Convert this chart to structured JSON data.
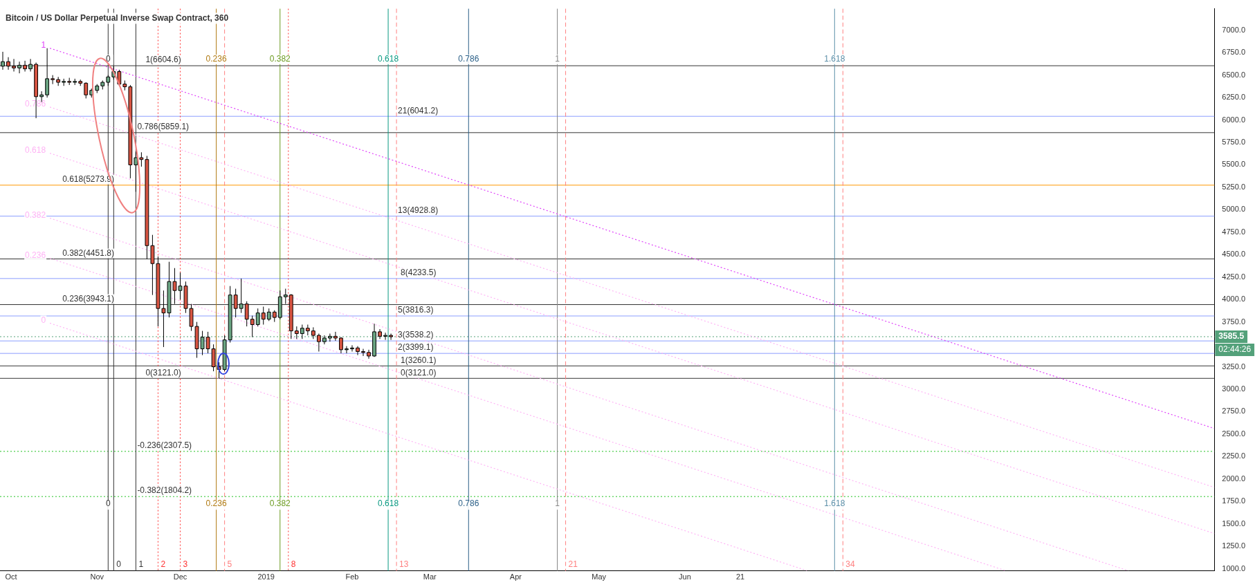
{
  "chart_data": {
    "type": "candlestick",
    "title": "Bitcoin / US Dollar Perpetual Inverse Swap Contract, 360",
    "x": [
      "2018-09-28",
      "2018-09-30",
      "2018-10-02",
      "2018-10-04",
      "2018-10-06",
      "2018-10-08",
      "2018-10-10",
      "2018-10-12",
      "2018-10-14",
      "2018-10-16",
      "2018-10-18",
      "2018-10-20",
      "2018-10-22",
      "2018-10-24",
      "2018-10-26",
      "2018-10-28",
      "2018-10-30",
      "2018-11-01",
      "2018-11-03",
      "2018-11-05",
      "2018-11-07",
      "2018-11-09",
      "2018-11-11",
      "2018-11-13",
      "2018-11-15",
      "2018-11-17",
      "2018-11-19",
      "2018-11-21",
      "2018-11-23",
      "2018-11-25",
      "2018-11-27",
      "2018-11-29",
      "2018-12-01",
      "2018-12-03",
      "2018-12-05",
      "2018-12-07",
      "2018-12-09",
      "2018-12-11",
      "2018-12-13",
      "2018-12-15",
      "2018-12-17",
      "2018-12-19",
      "2018-12-21",
      "2018-12-23",
      "2018-12-25",
      "2018-12-27",
      "2018-12-29",
      "2018-12-31",
      "2019-01-02",
      "2019-01-04",
      "2019-01-06",
      "2019-01-08",
      "2019-01-10",
      "2019-01-12",
      "2019-01-14",
      "2019-01-16",
      "2019-01-18",
      "2019-01-20",
      "2019-01-22",
      "2019-01-24",
      "2019-01-26",
      "2019-01-28",
      "2019-01-30",
      "2019-02-01",
      "2019-02-03",
      "2019-02-05",
      "2019-02-07",
      "2019-02-09",
      "2019-02-11",
      "2019-02-13",
      "2019-02-15"
    ],
    "ohlc": [
      [
        6600,
        6760,
        6560,
        6650
      ],
      [
        6650,
        6700,
        6560,
        6600
      ],
      [
        6600,
        6680,
        6540,
        6580
      ],
      [
        6580,
        6650,
        6520,
        6610
      ],
      [
        6610,
        6660,
        6540,
        6570
      ],
      [
        6570,
        6680,
        6540,
        6620
      ],
      [
        6620,
        6640,
        6020,
        6260
      ],
      [
        6260,
        6320,
        6200,
        6280
      ],
      [
        6280,
        6800,
        6250,
        6460
      ],
      [
        6460,
        6500,
        6400,
        6450
      ],
      [
        6450,
        6480,
        6380,
        6420
      ],
      [
        6420,
        6460,
        6380,
        6430
      ],
      [
        6430,
        6470,
        6390,
        6420
      ],
      [
        6420,
        6460,
        6390,
        6430
      ],
      [
        6430,
        6450,
        6380,
        6410
      ],
      [
        6410,
        6420,
        6240,
        6280
      ],
      [
        6280,
        6350,
        6250,
        6330
      ],
      [
        6330,
        6400,
        6300,
        6380
      ],
      [
        6380,
        6440,
        6340,
        6420
      ],
      [
        6420,
        6500,
        6380,
        6480
      ],
      [
        6480,
        6600,
        6450,
        6540
      ],
      [
        6540,
        6560,
        6380,
        6400
      ],
      [
        6400,
        6440,
        6330,
        6370
      ],
      [
        6370,
        6390,
        5350,
        5500
      ],
      [
        5500,
        5650,
        5200,
        5580
      ],
      [
        5580,
        5640,
        5480,
        5560
      ],
      [
        5560,
        5600,
        4450,
        4600
      ],
      [
        4600,
        4720,
        4050,
        4400
      ],
      [
        4400,
        4480,
        3700,
        3900
      ],
      [
        3900,
        4100,
        3470,
        3850
      ],
      [
        3850,
        4420,
        3800,
        4200
      ],
      [
        4200,
        4350,
        3950,
        4100
      ],
      [
        4100,
        4300,
        4000,
        4150
      ],
      [
        4150,
        4200,
        3850,
        3900
      ],
      [
        3900,
        3950,
        3650,
        3700
      ],
      [
        3700,
        3750,
        3350,
        3450
      ],
      [
        3450,
        3650,
        3380,
        3580
      ],
      [
        3580,
        3640,
        3400,
        3450
      ],
      [
        3450,
        3500,
        3200,
        3250
      ],
      [
        3250,
        3300,
        3121,
        3220
      ],
      [
        3220,
        3600,
        3200,
        3550
      ],
      [
        3550,
        4150,
        3520,
        4050
      ],
      [
        4050,
        4120,
        3800,
        3900
      ],
      [
        3900,
        4233,
        3850,
        3950
      ],
      [
        3950,
        3980,
        3700,
        3780
      ],
      [
        3780,
        3820,
        3580,
        3720
      ],
      [
        3720,
        3900,
        3700,
        3850
      ],
      [
        3850,
        3920,
        3720,
        3780
      ],
      [
        3780,
        3900,
        3760,
        3860
      ],
      [
        3860,
        3880,
        3750,
        3800
      ],
      [
        3800,
        4100,
        3780,
        4030
      ],
      [
        4030,
        4120,
        3950,
        4050
      ],
      [
        4050,
        4060,
        3560,
        3650
      ],
      [
        3650,
        3700,
        3560,
        3620
      ],
      [
        3620,
        3720,
        3560,
        3680
      ],
      [
        3680,
        3720,
        3600,
        3650
      ],
      [
        3650,
        3690,
        3560,
        3600
      ],
      [
        3600,
        3620,
        3420,
        3530
      ],
      [
        3530,
        3600,
        3500,
        3570
      ],
      [
        3570,
        3620,
        3530,
        3590
      ],
      [
        3590,
        3640,
        3540,
        3570
      ],
      [
        3570,
        3580,
        3400,
        3440
      ],
      [
        3440,
        3480,
        3400,
        3450
      ],
      [
        3450,
        3490,
        3420,
        3460
      ],
      [
        3460,
        3480,
        3380,
        3420
      ],
      [
        3420,
        3450,
        3370,
        3410
      ],
      [
        3410,
        3440,
        3340,
        3370
      ],
      [
        3370,
        3730,
        3360,
        3640
      ],
      [
        3640,
        3670,
        3560,
        3590
      ],
      [
        3590,
        3630,
        3550,
        3600
      ],
      [
        3600,
        3620,
        3550,
        3585
      ]
    ],
    "series": [
      {
        "type": "line",
        "name": "1",
        "color": "#e040fb",
        "x": [
          "2018-10-15",
          "2019-12-09"
        ],
        "values": [
          6800,
          2562
        ]
      },
      {
        "type": "line",
        "name": "0.786",
        "color": "#ffb3f5",
        "x": [
          "2018-10-15",
          "2019-12-09"
        ],
        "values": [
          6144,
          1906
        ]
      },
      {
        "type": "line",
        "name": "0.618",
        "color": "#ffb3f5",
        "x": [
          "2018-10-15",
          "2019-12-09"
        ],
        "values": [
          5630,
          1392
        ]
      },
      {
        "type": "line",
        "name": "0.382",
        "color": "#ffb3f5",
        "x": [
          "2018-10-15",
          "2019-11-08"
        ],
        "values": [
          4906,
          977
        ]
      },
      {
        "type": "line",
        "name": "0.236",
        "color": "#ffb3f5",
        "x": [
          "2018-10-15",
          "2019-09-25"
        ],
        "values": [
          4459,
          975
        ]
      },
      {
        "type": "line",
        "name": "0",
        "color": "#ffb3f5",
        "x": [
          "2018-10-15",
          "2019-07-15"
        ],
        "values": [
          3736,
          979
        ]
      }
    ],
    "line_style": "dotted",
    "marker": "none",
    "xlim": [
      "2018-09-27",
      "2019-12-09"
    ],
    "xticks": [
      {
        "value": "2018-10-01",
        "label": "Oct"
      },
      {
        "value": "2018-11-01",
        "label": "Nov"
      },
      {
        "value": "2018-12-01",
        "label": "Dec"
      },
      {
        "value": "2019-01-01",
        "label": "2019"
      },
      {
        "value": "2019-02-01",
        "label": "Feb"
      },
      {
        "value": "2019-03-01",
        "label": "Mar"
      },
      {
        "value": "2019-04-01",
        "label": "Apr"
      },
      {
        "value": "2019-05-01",
        "label": "May"
      },
      {
        "value": "2019-06-01",
        "label": "Jun"
      },
      {
        "value": "2019-06-21",
        "label": "21"
      }
    ],
    "ylim": [
      975,
      7240
    ],
    "yticks": [
      {
        "value": 1000,
        "label": "1000.0"
      },
      {
        "value": 1250,
        "label": "1250.0"
      },
      {
        "value": 1500,
        "label": "1500.0"
      },
      {
        "value": 1750,
        "label": "1750.0"
      },
      {
        "value": 2000,
        "label": "2000.0"
      },
      {
        "value": 2250,
        "label": "2250.0"
      },
      {
        "value": 2500,
        "label": "2500.0"
      },
      {
        "value": 2750,
        "label": "2750.0"
      },
      {
        "value": 3000,
        "label": "3000.0"
      },
      {
        "value": 3250,
        "label": "3250.0"
      },
      {
        "value": 3750,
        "label": "3750.0"
      },
      {
        "value": 4000,
        "label": "4000.0"
      },
      {
        "value": 4250,
        "label": "4250.0"
      },
      {
        "value": 4500,
        "label": "4500.0"
      },
      {
        "value": 4750,
        "label": "4750.0"
      },
      {
        "value": 5000,
        "label": "5000.0"
      },
      {
        "value": 5250,
        "label": "5250.0"
      },
      {
        "value": 5500,
        "label": "5500.0"
      },
      {
        "value": 5750,
        "label": "5750.0"
      },
      {
        "value": 6000,
        "label": "6000.0"
      },
      {
        "value": 6250,
        "label": "6250.0"
      },
      {
        "value": 6500,
        "label": "6500.0"
      },
      {
        "value": 6750,
        "label": "6750.0"
      },
      {
        "value": 7000,
        "label": "7000.0"
      }
    ],
    "grid": false,
    "legend": false,
    "ref_lines": [
      {
        "axis": "y",
        "value": 6604.6,
        "color": "#333333",
        "line_style": "solid"
      },
      {
        "axis": "y",
        "value": 5859.1,
        "color": "#333333",
        "line_style": "solid"
      },
      {
        "axis": "y",
        "value": 5273.9,
        "color": "#ff9800",
        "line_style": "solid"
      },
      {
        "axis": "y",
        "value": 4451.8,
        "color": "#333333",
        "line_style": "solid"
      },
      {
        "axis": "y",
        "value": 3943.1,
        "color": "#333333",
        "line_style": "solid"
      },
      {
        "axis": "y",
        "value": 3121.0,
        "color": "#333333",
        "line_style": "solid"
      },
      {
        "axis": "y",
        "value": 2307.5,
        "color": "#22c322",
        "line_style": "dotted"
      },
      {
        "axis": "y",
        "value": 1804.2,
        "color": "#22c322",
        "line_style": "dotted"
      },
      {
        "axis": "y",
        "value": 6041.2,
        "color": "#8c9eff",
        "line_style": "solid"
      },
      {
        "axis": "y",
        "value": 4928.8,
        "color": "#8c9eff",
        "line_style": "solid"
      },
      {
        "axis": "y",
        "value": 4233.5,
        "color": "#8c9eff",
        "line_style": "solid"
      },
      {
        "axis": "y",
        "value": 3816.3,
        "color": "#8c9eff",
        "line_style": "solid"
      },
      {
        "axis": "y",
        "value": 3538.2,
        "color": "#8c9eff",
        "line_style": "solid"
      },
      {
        "axis": "y",
        "value": 3399.1,
        "color": "#8c9eff",
        "line_style": "solid"
      },
      {
        "axis": "y",
        "value": 3260.1,
        "color": "#333333",
        "line_style": "solid"
      },
      {
        "axis": "y",
        "value": 3585.5,
        "label": "3585.5",
        "color": "#53a17a",
        "line_style": "dotted"
      },
      {
        "axis": "x",
        "value": "2018-11-07",
        "label": "0",
        "color": "#333333"
      },
      {
        "axis": "x",
        "value": "2018-11-15",
        "label": "1",
        "color": "#333333"
      },
      {
        "axis": "x",
        "value": "2018-11-23",
        "label": "2",
        "color": "#ff3333",
        "line_style": "dotted"
      },
      {
        "axis": "x",
        "value": "2018-12-01",
        "label": "3",
        "color": "#ff3333",
        "line_style": "dotted"
      },
      {
        "axis": "x",
        "value": "2018-12-17",
        "label": "5",
        "color": "#ff8080",
        "line_style": "dashed"
      },
      {
        "axis": "x",
        "value": "2019-01-09",
        "label": "8",
        "color": "#ff3333",
        "line_style": "dotted"
      },
      {
        "axis": "x",
        "value": "2019-02-17",
        "label": "13",
        "color": "#ff8080",
        "line_style": "dashed"
      },
      {
        "axis": "x",
        "value": "2019-04-19",
        "label": "21",
        "color": "#ff8080",
        "line_style": "dashed"
      },
      {
        "axis": "x",
        "value": "2019-07-28",
        "label": "34",
        "color": "#ff8080",
        "line_style": "dashed"
      },
      {
        "axis": "x",
        "value": "2018-11-05",
        "label": "0",
        "color": "#333333",
        "line_style": "solid"
      },
      {
        "axis": "x",
        "value": "2018-12-14",
        "label": "0.236",
        "color": "#b07a12",
        "line_style": "solid"
      },
      {
        "axis": "x",
        "value": "2019-01-06",
        "label": "0.382",
        "color": "#6b9a1f",
        "line_style": "solid"
      },
      {
        "axis": "x",
        "value": "2019-02-14",
        "label": "0.618",
        "color": "#089981",
        "line_style": "solid"
      },
      {
        "axis": "x",
        "value": "2019-03-15",
        "label": "0.786",
        "color": "#2a5f87",
        "line_style": "solid"
      },
      {
        "axis": "x",
        "value": "2019-04-16",
        "label": "1",
        "color": "#888888",
        "line_style": "solid"
      },
      {
        "axis": "x",
        "value": "2019-07-25",
        "label": "1.618",
        "color": "#5b8fa8",
        "line_style": "solid"
      }
    ],
    "annotations": [
      {
        "text": "1(6604.6)",
        "x": "2018-11-18",
        "y": 6604.6
      },
      {
        "text": "0.786(5859.1)",
        "x": "2018-11-15",
        "y": 5859.1
      },
      {
        "text": "0.618(5273.9)",
        "x": "2018-10-19",
        "y": 5273.9
      },
      {
        "text": "0.382(4451.8)",
        "x": "2018-10-19",
        "y": 4451.8
      },
      {
        "text": "0.236(3943.1)",
        "x": "2018-10-19",
        "y": 3943.1
      },
      {
        "text": "0(3121.0)",
        "x": "2018-11-18",
        "y": 3121.0
      },
      {
        "text": "-0.236(2307.5)",
        "x": "2018-11-15",
        "y": 2307.5
      },
      {
        "text": "-0.382(1804.2)",
        "x": "2018-11-15",
        "y": 1804.2
      },
      {
        "text": "21(6041.2)",
        "x": "2019-02-17",
        "y": 6041.2
      },
      {
        "text": "13(4928.8)",
        "x": "2019-02-17",
        "y": 4928.8
      },
      {
        "text": "8(4233.5)",
        "x": "2019-02-18",
        "y": 4233.5
      },
      {
        "text": "5(3816.3)",
        "x": "2019-02-17",
        "y": 3816.3
      },
      {
        "text": "3(3538.2)",
        "x": "2019-02-17",
        "y": 3538.2
      },
      {
        "text": "2(3399.1)",
        "x": "2019-02-17",
        "y": 3399.1
      },
      {
        "text": "1(3260.1)",
        "x": "2019-02-18",
        "y": 3260.1
      },
      {
        "text": "0(3121.0)",
        "x": "2019-02-18",
        "y": 3121.0
      },
      "02:44:26"
    ]
  }
}
